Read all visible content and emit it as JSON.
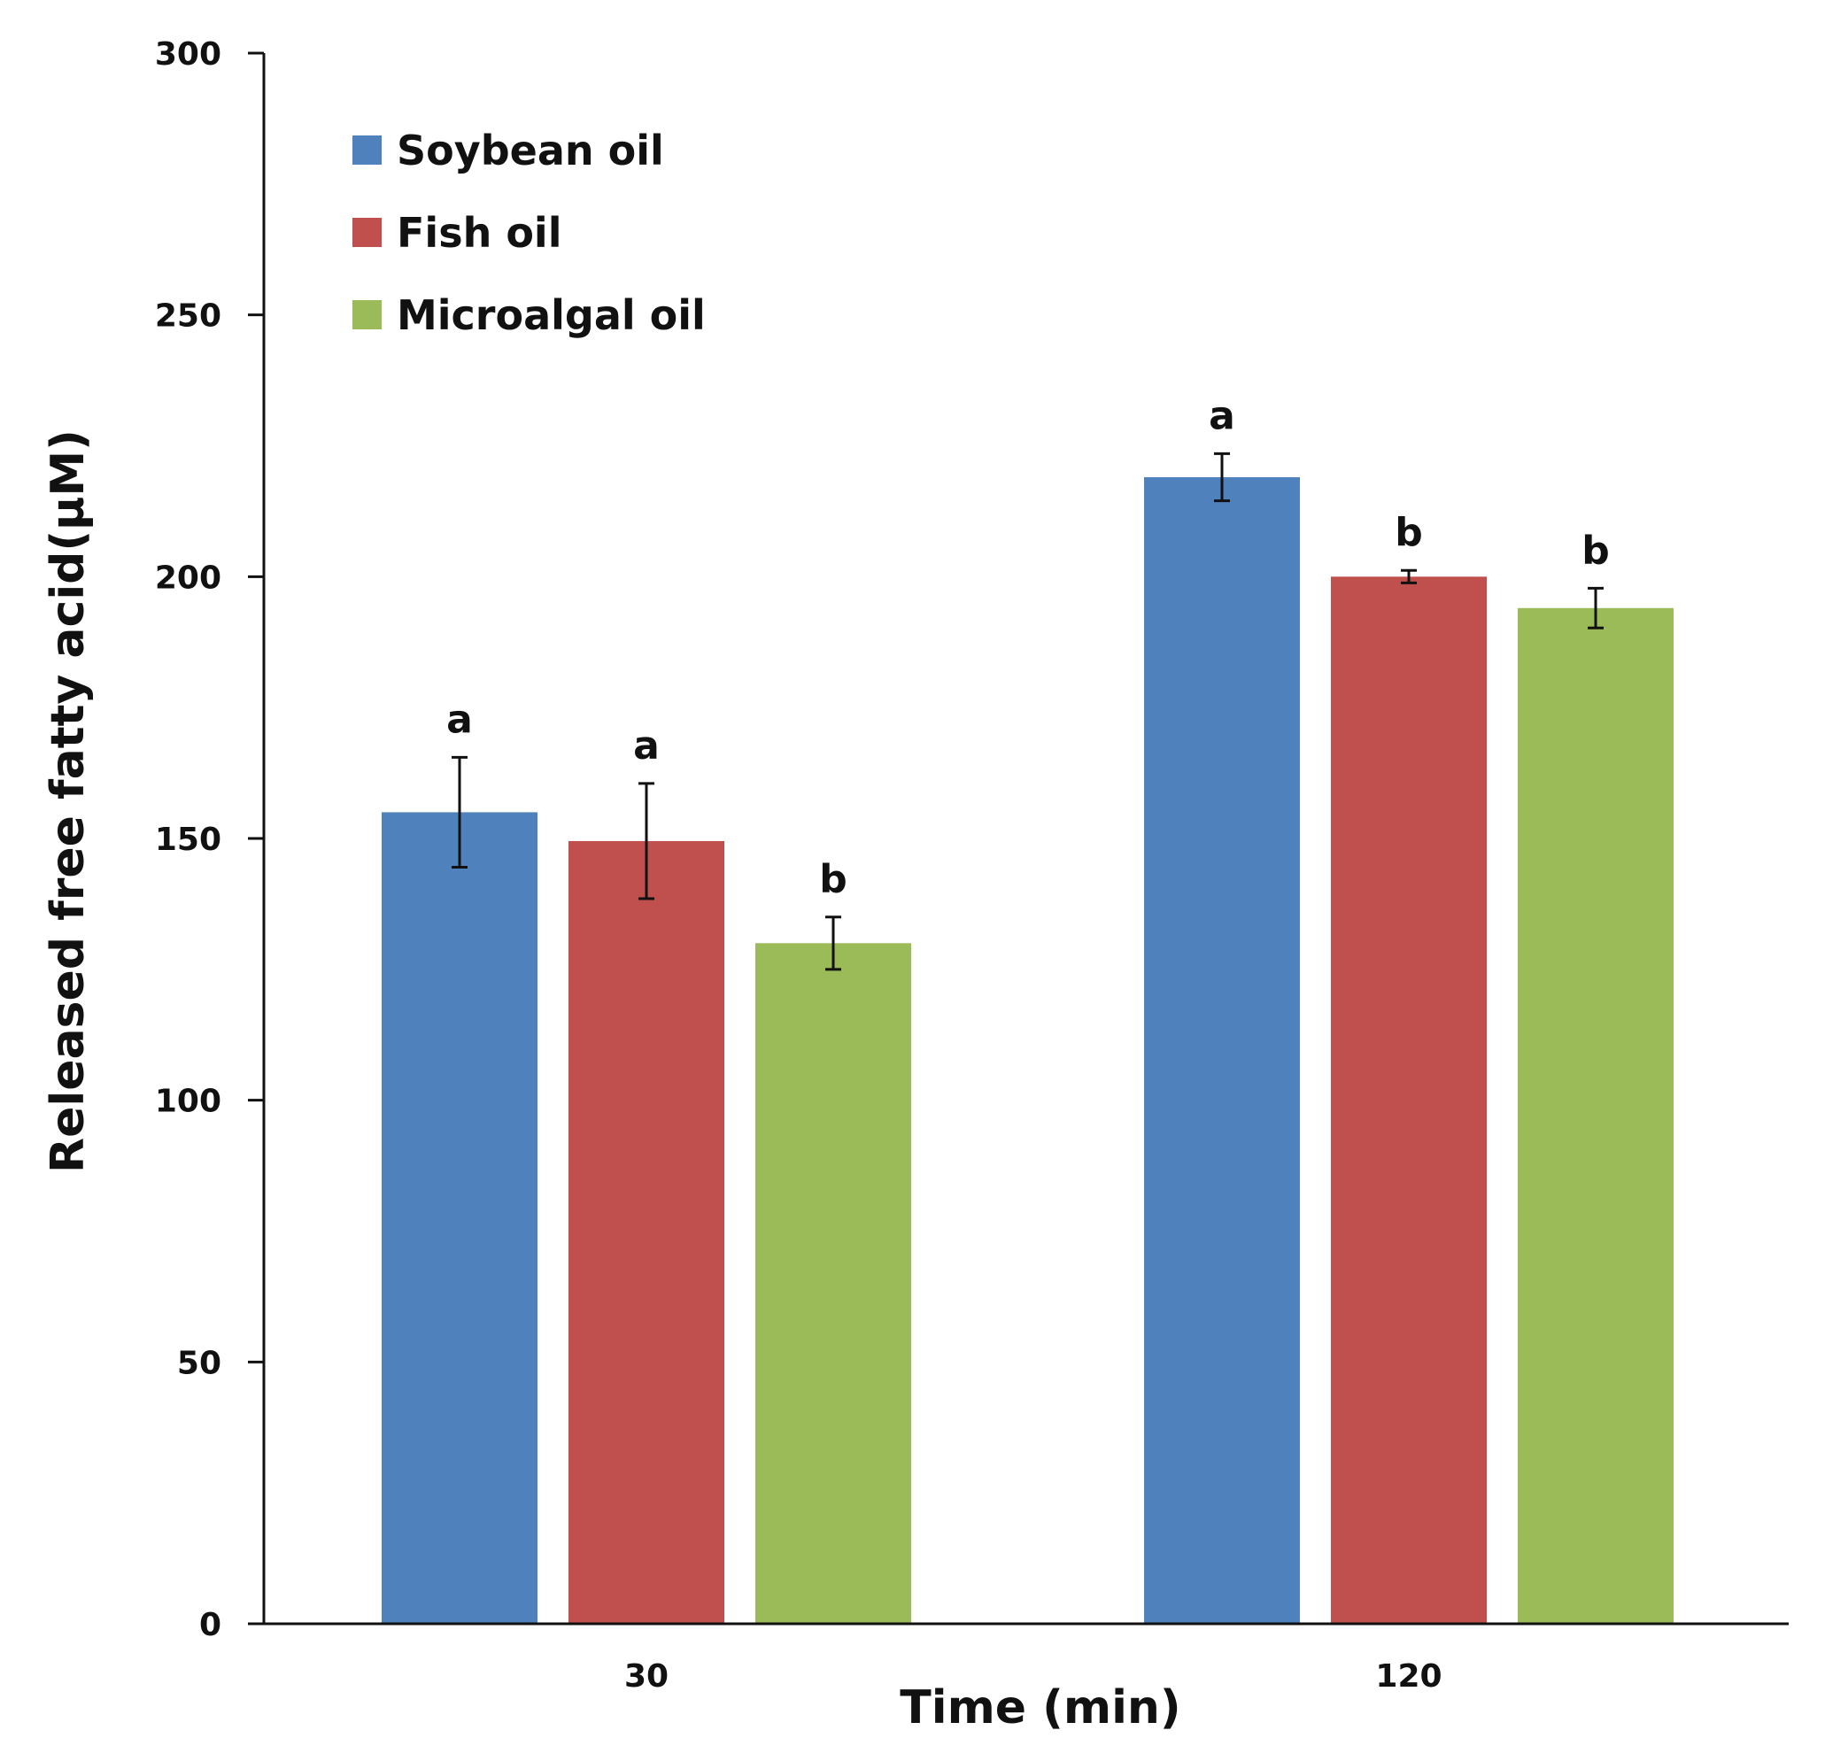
{
  "chart_data": {
    "type": "bar",
    "title": "",
    "xlabel": "Time (min)",
    "ylabel": "Released free fatty acid(μM)",
    "categories": [
      "30",
      "120"
    ],
    "ylim": [
      0,
      300
    ],
    "yticks": [
      "0",
      "50",
      "100",
      "150",
      "200",
      "250",
      "300"
    ],
    "grid": false,
    "legend_position": "top-left",
    "series": [
      {
        "name": "Soybean oil",
        "color": "#4f81bd",
        "values": [
          155,
          219
        ],
        "errors": [
          10.5,
          4.5
        ],
        "labels": [
          "a",
          "a"
        ]
      },
      {
        "name": "Fish oil",
        "color": "#c0504d",
        "values": [
          149.5,
          200
        ],
        "errors": [
          11,
          1.2
        ],
        "labels": [
          "a",
          "b"
        ]
      },
      {
        "name": "Microalgal oil",
        "color": "#9bbb59",
        "values": [
          130,
          194
        ],
        "errors": [
          5,
          3.8
        ],
        "labels": [
          "b",
          "b"
        ]
      }
    ]
  }
}
